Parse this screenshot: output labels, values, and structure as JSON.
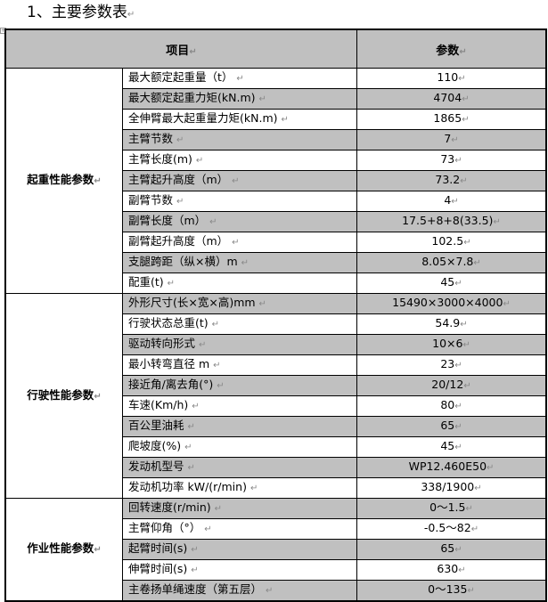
{
  "document": {
    "title": "1、主要参数表",
    "header": {
      "item": "项目",
      "value": "参数"
    },
    "groups": [
      {
        "name": "起重性能参数",
        "rows": [
          {
            "item": "最大额定起重量（t）",
            "value": "110"
          },
          {
            "item": "最大额定起重力矩(kN.m)",
            "value": "4704"
          },
          {
            "item": "全伸臂最大起重量力矩(kN.m)",
            "value": "1865"
          },
          {
            "item": "主臂节数",
            "value": "7"
          },
          {
            "item": "主臂长度(m)",
            "value": "73"
          },
          {
            "item": "主臂起升高度（m）",
            "value": "73.2"
          },
          {
            "item": "副臂节数",
            "value": "4"
          },
          {
            "item": "副臂长度（m）",
            "value": "17.5+8+8(33.5)"
          },
          {
            "item": "副臂起升高度（m）",
            "value": "102.5"
          },
          {
            "item": "支腿跨距（纵×横）m",
            "value": "8.05×7.8"
          },
          {
            "item": "配重(t)",
            "value": "45"
          }
        ]
      },
      {
        "name": "行驶性能参数",
        "rows": [
          {
            "item": "外形尺寸(长×宽×高)mm",
            "value": "15490×3000×4000"
          },
          {
            "item": "行驶状态总重(t)",
            "value": "54.9"
          },
          {
            "item": "驱动转向形式",
            "value": "10×6"
          },
          {
            "item": "最小转弯直径 m",
            "value": "23"
          },
          {
            "item": "接近角/离去角(°)",
            "value": "20/12"
          },
          {
            "item": "车速(Km/h)",
            "value": "80"
          },
          {
            "item": "百公里油耗",
            "value": "65"
          },
          {
            "item": "爬坡度(%)",
            "value": "45"
          },
          {
            "item": "发动机型号",
            "value": "WP12.460E50"
          },
          {
            "item": "发动机功率 kW/(r/min)",
            "value": "338/1900"
          }
        ]
      },
      {
        "name": "作业性能参数",
        "rows": [
          {
            "item": "回转速度(r/min)",
            "value": "0～1.5"
          },
          {
            "item": "主臂仰角（°）",
            "value": "-0.5～82"
          },
          {
            "item": "起臂时间(s)",
            "value": "65"
          },
          {
            "item": "伸臂时间(s)",
            "value": "630"
          },
          {
            "item": "主卷扬单绳速度（第五层）",
            "value": "0～135"
          }
        ]
      }
    ]
  },
  "colors": {
    "shade": "#c0c0c0",
    "border": "#000000"
  }
}
